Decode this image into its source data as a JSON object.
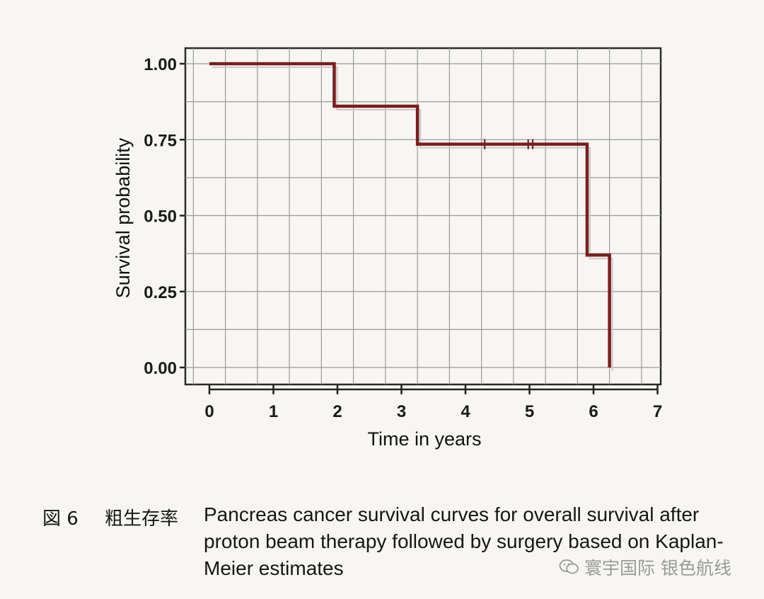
{
  "chart_data": {
    "type": "line",
    "step": true,
    "xlabel": "Time in years",
    "ylabel": "Survival probability",
    "x_ticks": [
      "0",
      "1",
      "2",
      "3",
      "4",
      "5",
      "6",
      "7"
    ],
    "y_ticks": [
      "1.00",
      "0.75",
      "0.50",
      "0.25",
      "0.00"
    ],
    "xlim": [
      0,
      7
    ],
    "ylim": [
      0,
      1
    ],
    "grid": true,
    "series": [
      {
        "color": "#7a1e1e",
        "x": [
          0,
          1.95,
          3.25,
          5.9,
          6.25
        ],
        "y": [
          1.0,
          0.86,
          0.735,
          0.37,
          0.0
        ],
        "end_x": 6.25
      }
    ],
    "censor_marks_x": [
      4.3,
      4.98,
      5.05
    ]
  },
  "caption": {
    "figure_label": "図 6",
    "subtitle": "粗生存率",
    "text_lines": [
      "Pancreas cancer survival curves for overall survival after",
      "proton beam therapy followed by surgery based on Kaplan-",
      "Meier estimates"
    ]
  },
  "watermark": {
    "text": "寰宇国际 银色航线",
    "icon": "wechat-icon"
  }
}
